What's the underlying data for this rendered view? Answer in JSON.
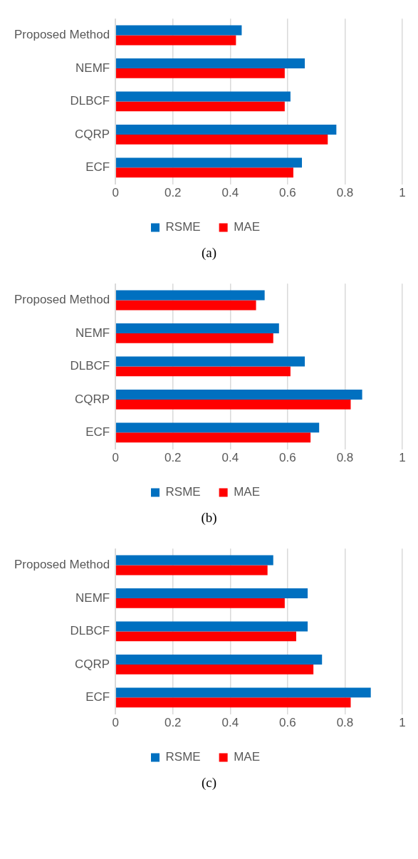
{
  "chart_data": [
    {
      "type": "bar",
      "orientation": "horizontal",
      "categories": [
        "Proposed Method",
        "NEMF",
        "DLBCF",
        "CQRP",
        "ECF"
      ],
      "series": [
        {
          "name": "RSME",
          "color": "#0070c0",
          "values": [
            0.44,
            0.66,
            0.61,
            0.77,
            0.65
          ]
        },
        {
          "name": "MAE",
          "color": "#ff0000",
          "values": [
            0.42,
            0.59,
            0.59,
            0.74,
            0.62
          ]
        }
      ],
      "xlim": [
        0,
        1
      ],
      "xticks": [
        0,
        0.2,
        0.4,
        0.6,
        0.8,
        1
      ],
      "grid": "x",
      "legend": "bottom",
      "annotations": [
        "(a)"
      ]
    },
    {
      "type": "bar",
      "orientation": "horizontal",
      "categories": [
        "Proposed Method",
        "NEMF",
        "DLBCF",
        "CQRP",
        "ECF"
      ],
      "series": [
        {
          "name": "RSME",
          "color": "#0070c0",
          "values": [
            0.52,
            0.57,
            0.66,
            0.86,
            0.71
          ]
        },
        {
          "name": "MAE",
          "color": "#ff0000",
          "values": [
            0.49,
            0.55,
            0.61,
            0.82,
            0.68
          ]
        }
      ],
      "xlim": [
        0,
        1
      ],
      "xticks": [
        0,
        0.2,
        0.4,
        0.6,
        0.8,
        1
      ],
      "grid": "x",
      "legend": "bottom",
      "annotations": [
        "(b)"
      ]
    },
    {
      "type": "bar",
      "orientation": "horizontal",
      "categories": [
        "Proposed Method",
        "NEMF",
        "DLBCF",
        "CQRP",
        "ECF"
      ],
      "series": [
        {
          "name": "RSME",
          "color": "#0070c0",
          "values": [
            0.55,
            0.67,
            0.67,
            0.72,
            0.89
          ]
        },
        {
          "name": "MAE",
          "color": "#ff0000",
          "values": [
            0.53,
            0.59,
            0.63,
            0.69,
            0.82
          ]
        }
      ],
      "xlim": [
        0,
        1
      ],
      "xticks": [
        0,
        0.2,
        0.4,
        0.6,
        0.8,
        1
      ],
      "grid": "x",
      "legend": "bottom",
      "annotations": [
        "(c)"
      ]
    }
  ]
}
